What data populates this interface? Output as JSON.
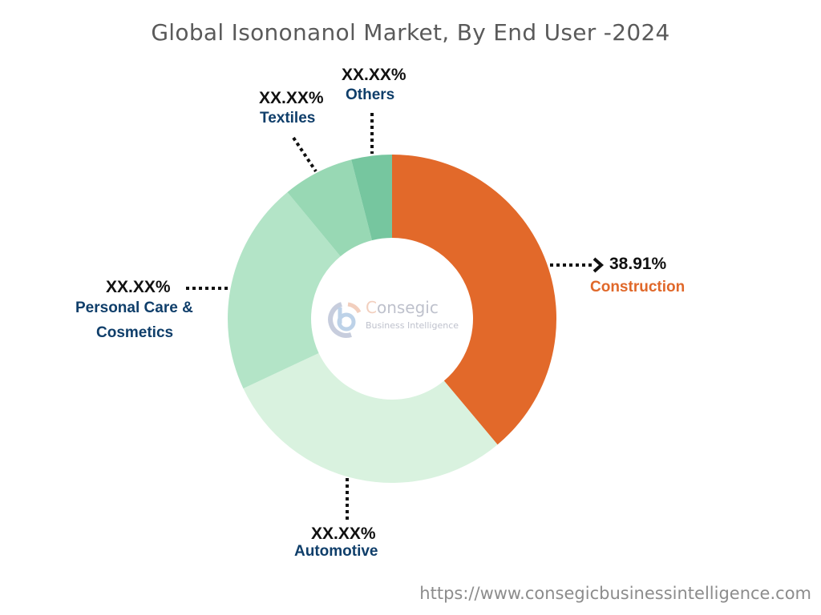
{
  "title": "Global Isononanol Market, By End User -2024",
  "footer_url": "https://www.consegicbusinessintelligence.com",
  "watermark": {
    "brand": "Consegic",
    "tagline": "Business Intelligence"
  },
  "labels": {
    "construction": {
      "pct": "38.91%",
      "name": "Construction"
    },
    "automotive": {
      "pct": "XX.XX%",
      "name": "Automotive"
    },
    "personal_care": {
      "pct": "XX.XX%",
      "name_line1": "Personal Care &",
      "name_line2": "Cosmetics"
    },
    "textiles": {
      "pct": "XX.XX%",
      "name": "Textiles"
    },
    "others": {
      "pct": "XX.XX%",
      "name": "Others"
    }
  },
  "colors": {
    "construction": "#e2692a",
    "automotive": "#d9f2df",
    "personal_care": "#b3e4c7",
    "textiles": "#98d8b4",
    "others": "#76c69f"
  },
  "chart_data": {
    "type": "pie",
    "subtype": "donut",
    "title": "Global Isononanol Market, By End User -2024",
    "categories": [
      "Construction",
      "Automotive",
      "Personal Care & Cosmetics",
      "Textiles",
      "Others"
    ],
    "values": [
      38.91,
      29.1,
      21.0,
      7.0,
      3.99
    ],
    "value_labels": [
      "38.91%",
      "XX.XX%",
      "XX.XX%",
      "XX.XX%",
      "XX.XX%"
    ],
    "values_note": "Only Construction share (38.91%) is labeled; other values estimated from slice angles",
    "colors": [
      "#e2692a",
      "#d9f2df",
      "#b3e4c7",
      "#98d8b4",
      "#76c69f"
    ],
    "start_angle": "12 o'clock, clockwise",
    "legend": "none (callout labels)"
  }
}
